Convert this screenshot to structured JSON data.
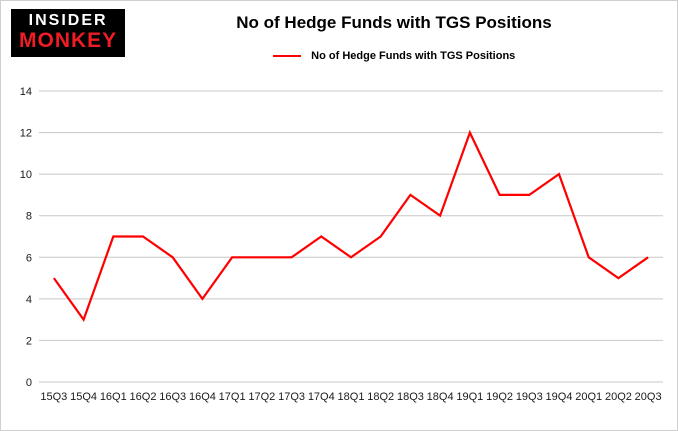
{
  "header": {
    "logo": {
      "line1": "INSIDER",
      "line2": "MONKEY"
    },
    "title": "No of Hedge Funds with TGS Positions",
    "legend_label": "No of Hedge Funds with TGS Positions"
  },
  "colors": {
    "line": "#fe0000",
    "grid": "#c8c8c8",
    "axis_text": "#1a1a1a",
    "background": "#ffffff"
  },
  "chart_data": {
    "type": "line",
    "title": "No of Hedge Funds with TGS Positions",
    "legend": [
      "No of Hedge Funds with TGS Positions"
    ],
    "legend_position": "top",
    "grid": true,
    "xlabel": "",
    "ylabel": "",
    "ylim": [
      0,
      14
    ],
    "yticks": [
      0,
      2,
      4,
      6,
      8,
      10,
      12,
      14
    ],
    "categories": [
      "15Q3",
      "15Q4",
      "16Q1",
      "16Q2",
      "16Q3",
      "16Q4",
      "17Q1",
      "17Q2",
      "17Q3",
      "17Q4",
      "18Q1",
      "18Q2",
      "18Q3",
      "18Q4",
      "19Q1",
      "19Q2",
      "19Q3",
      "19Q4",
      "20Q1",
      "20Q2",
      "20Q3"
    ],
    "series": [
      {
        "name": "No of Hedge Funds with TGS Positions",
        "values": [
          5,
          3,
          7,
          7,
          6,
          4,
          6,
          6,
          6,
          7,
          6,
          7,
          9,
          8,
          12,
          9,
          9,
          10,
          6,
          5,
          6
        ]
      }
    ]
  }
}
